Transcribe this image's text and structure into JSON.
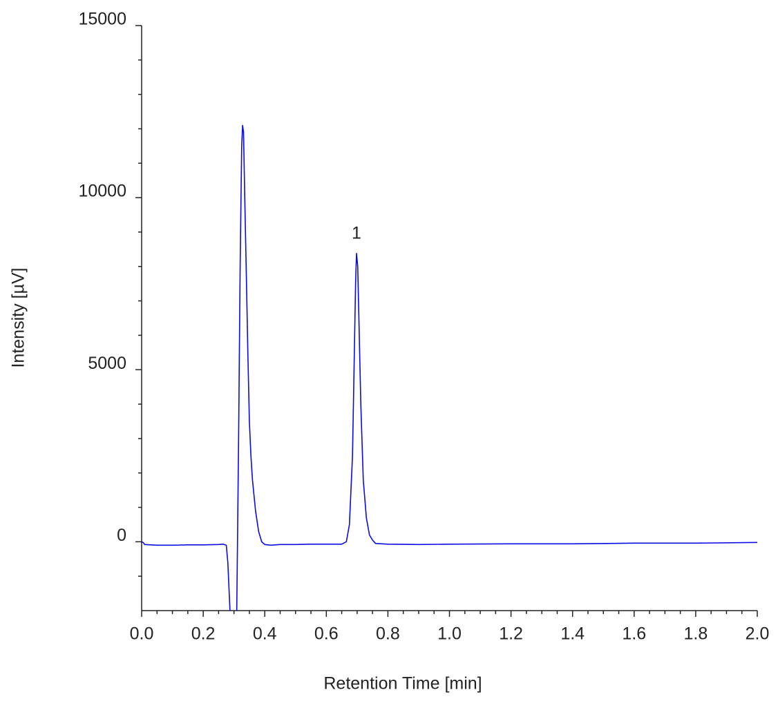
{
  "chart_data": {
    "type": "line",
    "xlabel": "Retention Time [min]",
    "ylabel": "Intensity [µV]",
    "x": [
      0,
      0.005,
      0.01,
      0.05,
      0.1,
      0.15,
      0.2,
      0.25,
      0.265,
      0.275,
      0.28,
      0.287,
      0.298,
      0.309,
      0.315,
      0.32,
      0.325,
      0.328,
      0.331,
      0.335,
      0.34,
      0.345,
      0.35,
      0.355,
      0.36,
      0.37,
      0.38,
      0.39,
      0.4,
      0.42,
      0.45,
      0.5,
      0.55,
      0.6,
      0.65,
      0.665,
      0.675,
      0.685,
      0.69,
      0.695,
      0.698,
      0.702,
      0.707,
      0.712,
      0.72,
      0.73,
      0.74,
      0.75,
      0.76,
      0.8,
      0.9,
      1.0,
      1.2,
      1.4,
      1.6,
      1.8,
      2.0
    ],
    "series": [
      {
        "color": "#0a0ae6",
        "values": [
          0,
          -20,
          -80,
          -100,
          -100,
          -90,
          -90,
          -80,
          -70,
          -100,
          -600,
          -2000,
          null,
          -2000,
          3000,
          8000,
          11500,
          12100,
          11900,
          10000,
          7800,
          5500,
          3500,
          2500,
          1800,
          900,
          300,
          0,
          -80,
          -100,
          -80,
          -80,
          -70,
          -70,
          -70,
          0,
          500,
          2500,
          5000,
          7500,
          8380,
          8000,
          6000,
          4000,
          1800,
          700,
          200,
          50,
          -50,
          -70,
          -80,
          -70,
          -60,
          -60,
          -40,
          -40,
          -20
        ]
      }
    ],
    "annotations": [
      {
        "text": "1",
        "x": 0.698,
        "y": 8380
      }
    ],
    "xlim": [
      0,
      2.0
    ],
    "ylim": [
      -2000,
      15000
    ],
    "xticks": [
      {
        "value": 0,
        "label": "0.0"
      },
      0.2,
      0.4,
      0.6,
      0.8,
      {
        "value": 1,
        "label": "1.0"
      },
      1.2,
      1.4,
      1.6,
      1.8,
      {
        "value": 2,
        "label": "2.0"
      }
    ],
    "yticks": [
      0,
      5000,
      10000,
      15000
    ],
    "xminorticks": [
      0.05,
      0.1,
      0.15,
      0.25,
      0.3,
      0.35,
      0.45,
      0.5,
      0.55,
      0.65,
      0.7,
      0.75,
      0.85,
      0.9,
      0.95,
      1.05,
      1.1,
      1.15,
      1.25,
      1.3,
      1.35,
      1.45,
      1.5,
      1.55,
      1.65,
      1.7,
      1.75,
      1.85,
      1.9,
      1.95
    ],
    "yminorticks": [
      -1000,
      1000,
      2000,
      3000,
      4000,
      6000,
      7000,
      8000,
      9000,
      11000,
      12000,
      13000,
      14000
    ],
    "grid": false
  }
}
